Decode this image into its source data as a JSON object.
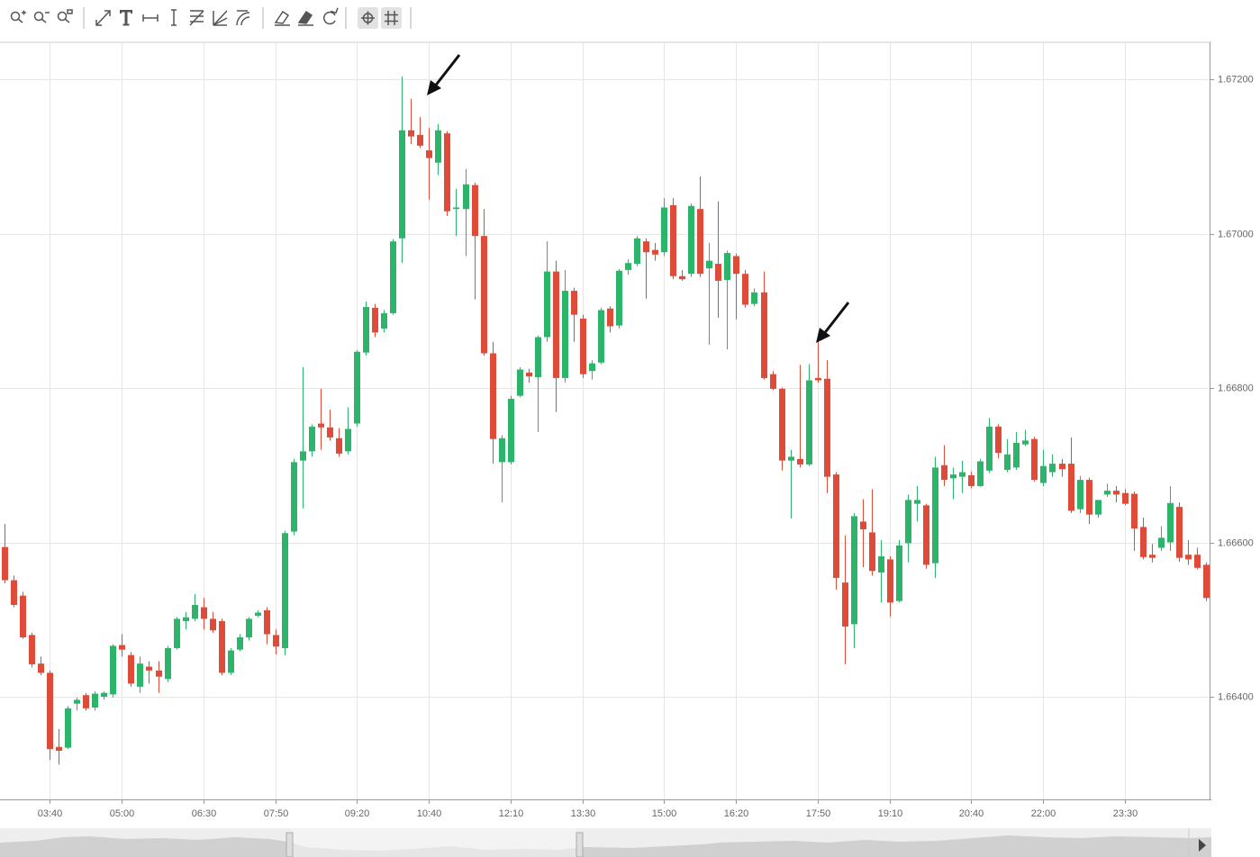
{
  "chart_data": {
    "type": "candlestick",
    "up_color": "#2db46b",
    "down_color": "#de4b39",
    "grid": true,
    "ylim": [
      1.66267,
      1.67248
    ],
    "yticks": [
      {
        "value": 1.672,
        "label": "1.67200"
      },
      {
        "value": 1.67,
        "label": "1.67000"
      },
      {
        "value": 1.668,
        "label": "1.66800"
      },
      {
        "value": 1.666,
        "label": "1.66600"
      },
      {
        "value": 1.664,
        "label": "1.66400"
      }
    ],
    "categories": [
      null,
      null,
      null,
      null,
      null,
      "03:40",
      null,
      null,
      null,
      null,
      null,
      null,
      null,
      "05:00",
      null,
      null,
      null,
      null,
      null,
      null,
      null,
      null,
      "06:30",
      null,
      null,
      null,
      null,
      null,
      null,
      null,
      "07:50",
      null,
      null,
      null,
      null,
      null,
      null,
      null,
      null,
      "09:20",
      null,
      null,
      null,
      null,
      null,
      null,
      null,
      "10:40",
      null,
      null,
      null,
      null,
      null,
      null,
      null,
      null,
      "12:10",
      null,
      null,
      null,
      null,
      null,
      null,
      null,
      "13:30",
      null,
      null,
      null,
      null,
      null,
      null,
      null,
      null,
      "15:00",
      null,
      null,
      null,
      null,
      null,
      null,
      null,
      "16:20",
      null,
      null,
      null,
      null,
      null,
      null,
      null,
      null,
      "17:50",
      null,
      null,
      null,
      null,
      null,
      null,
      null,
      "19:10",
      null,
      null,
      null,
      null,
      null,
      null,
      null,
      null,
      "20:40",
      null,
      null,
      null,
      null,
      null,
      null,
      null,
      "22:00",
      null,
      null,
      null,
      null,
      null,
      null,
      null,
      null,
      "23:30",
      null,
      null,
      null,
      null,
      null,
      null,
      null,
      null,
      null
    ],
    "open": [
      1.66594,
      1.66551,
      1.66531,
      1.6648,
      1.66443,
      1.66431,
      1.66335,
      1.66334,
      1.66391,
      1.66402,
      1.66386,
      1.664,
      1.66403,
      1.66467,
      1.66454,
      1.66413,
      1.66439,
      1.66434,
      1.66423,
      1.66463,
      1.66498,
      1.66501,
      1.66516,
      1.66501,
      1.66498,
      1.66431,
      1.66461,
      1.66477,
      1.66505,
      1.66512,
      1.6648,
      1.66463,
      1.66614,
      1.66706,
      1.66718,
      1.66754,
      1.66749,
      1.66735,
      1.66718,
      1.66754,
      1.66846,
      1.66904,
      1.66877,
      1.66897,
      1.66994,
      1.67134,
      1.67128,
      1.67108,
      1.67092,
      1.6713,
      1.67032,
      1.67032,
      1.67063,
      1.66997,
      1.66845,
      1.66704,
      1.66704,
      1.6679,
      1.6682,
      1.66814,
      1.66866,
      1.66951,
      1.66813,
      1.66926,
      1.6689,
      1.66822,
      1.66833,
      1.66903,
      1.66881,
      1.66953,
      1.66961,
      1.6699,
      1.66979,
      1.66976,
      1.67037,
      1.66945,
      1.66948,
      1.67032,
      1.66955,
      1.66961,
      1.6694,
      1.66971,
      1.66948,
      1.66909,
      1.66924,
      1.66818,
      1.66799,
      1.66706,
      1.66708,
      1.66701,
      1.66813,
      1.66812,
      1.66688,
      1.66548,
      1.66494,
      1.66627,
      1.66613,
      1.66561,
      1.66578,
      1.66524,
      1.66599,
      1.6665,
      1.66648,
      1.66573,
      1.667,
      1.66683,
      1.66685,
      1.66687,
      1.66673,
      1.66693,
      1.6675,
      1.66694,
      1.66697,
      1.66727,
      1.66734,
      1.66677,
      1.66691,
      1.66702,
      1.66702,
      1.66643,
      1.66681,
      1.66636,
      1.66662,
      1.66667,
      1.66664,
      1.66663,
      1.6662,
      1.66584,
      1.66593,
      1.666,
      1.66646,
      1.66584,
      1.66584,
      1.66571
    ],
    "high": [
      1.66624,
      1.66557,
      1.66536,
      1.66483,
      1.66452,
      1.66434,
      1.66358,
      1.66388,
      1.66399,
      1.66405,
      1.66407,
      1.66407,
      1.66468,
      1.66481,
      1.66458,
      1.66452,
      1.66446,
      1.66446,
      1.66466,
      1.66503,
      1.6651,
      1.66533,
      1.66528,
      1.6651,
      1.66501,
      1.66463,
      1.66481,
      1.66503,
      1.66512,
      1.66516,
      1.66487,
      1.66615,
      1.66708,
      1.66827,
      1.66753,
      1.66799,
      1.66772,
      1.66748,
      1.66775,
      1.66849,
      1.66912,
      1.66909,
      1.66901,
      1.66993,
      1.67204,
      1.67175,
      1.67151,
      1.67137,
      1.67142,
      1.67133,
      1.67058,
      1.67084,
      1.67066,
      1.67032,
      1.6686,
      1.66739,
      1.6679,
      1.66827,
      1.66825,
      1.66868,
      1.6699,
      1.66965,
      1.66953,
      1.6693,
      1.66895,
      1.66836,
      1.66904,
      1.66906,
      1.66954,
      1.66967,
      1.66997,
      1.66994,
      1.66988,
      1.67046,
      1.67046,
      1.66953,
      1.67039,
      1.67074,
      1.66988,
      1.67042,
      1.66978,
      1.66974,
      1.66953,
      1.66929,
      1.66951,
      1.66822,
      1.66801,
      1.6672,
      1.6683,
      1.66831,
      1.6686,
      1.66836,
      1.66691,
      1.66609,
      1.66638,
      1.66656,
      1.66669,
      1.66603,
      1.66582,
      1.66603,
      1.66662,
      1.66673,
      1.6665,
      1.66711,
      1.66726,
      1.66697,
      1.66706,
      1.66692,
      1.66708,
      1.66761,
      1.66753,
      1.66734,
      1.66743,
      1.66746,
      1.66737,
      1.6672,
      1.66714,
      1.66708,
      1.66736,
      1.66686,
      1.66684,
      1.6665,
      1.66676,
      1.66673,
      1.66669,
      1.66666,
      1.66632,
      1.66598,
      1.66621,
      1.66673,
      1.66652,
      1.66603,
      1.66593,
      1.66574
    ],
    "low": [
      1.66547,
      1.66516,
      1.66475,
      1.66438,
      1.66428,
      1.66318,
      1.66312,
      1.66332,
      1.66382,
      1.66382,
      1.66382,
      1.66396,
      1.66399,
      1.66452,
      1.66413,
      1.66405,
      1.66417,
      1.66405,
      1.66419,
      1.66461,
      1.66487,
      1.66498,
      1.66487,
      1.66483,
      1.66428,
      1.66428,
      1.66459,
      1.66473,
      1.66503,
      1.66468,
      1.66455,
      1.66454,
      1.66609,
      1.66644,
      1.66711,
      1.6672,
      1.66732,
      1.66711,
      1.66714,
      1.6675,
      1.66842,
      1.66866,
      1.66872,
      1.66895,
      1.66962,
      1.67116,
      1.67111,
      1.67044,
      1.67076,
      1.67023,
      1.66997,
      1.66971,
      1.66915,
      1.66842,
      1.66702,
      1.66652,
      1.66701,
      1.66788,
      1.66807,
      1.66743,
      1.6686,
      1.66769,
      1.66807,
      1.6686,
      1.66813,
      1.66811,
      1.66831,
      1.66872,
      1.66877,
      1.66947,
      1.66958,
      1.66916,
      1.66965,
      1.66971,
      1.66941,
      1.66939,
      1.66944,
      1.66944,
      1.66856,
      1.66891,
      1.6685,
      1.66889,
      1.66904,
      1.66906,
      1.66811,
      1.66797,
      1.66693,
      1.66631,
      1.66697,
      1.66699,
      1.66807,
      1.66664,
      1.66539,
      1.66442,
      1.66463,
      1.66568,
      1.66557,
      1.66522,
      1.66504,
      1.66522,
      1.66574,
      1.66627,
      1.66566,
      1.66554,
      1.66673,
      1.66656,
      1.66664,
      1.6667,
      1.66672,
      1.6669,
      1.66709,
      1.66691,
      1.66694,
      1.66725,
      1.66679,
      1.66673,
      1.66685,
      1.66685,
      1.66638,
      1.66638,
      1.66624,
      1.66632,
      1.66659,
      1.66652,
      1.66648,
      1.66589,
      1.66578,
      1.66574,
      1.66589,
      1.66589,
      1.66575,
      1.66571,
      1.66565,
      1.66524
    ],
    "close": [
      1.66551,
      1.66519,
      1.66477,
      1.66442,
      1.66431,
      1.66332,
      1.6633,
      1.66385,
      1.66396,
      1.66385,
      1.66404,
      1.66405,
      1.66466,
      1.66461,
      1.66417,
      1.66443,
      1.66434,
      1.66426,
      1.66463,
      1.66501,
      1.66503,
      1.66519,
      1.66501,
      1.66486,
      1.66431,
      1.6646,
      1.66477,
      1.66501,
      1.66509,
      1.66481,
      1.66465,
      1.66612,
      1.66704,
      1.66718,
      1.6675,
      1.66749,
      1.66736,
      1.66715,
      1.66747,
      1.66847,
      1.66905,
      1.66872,
      1.66897,
      1.6699,
      1.67134,
      1.67126,
      1.67114,
      1.67098,
      1.67134,
      1.67029,
      1.67034,
      1.67064,
      1.66997,
      1.66845,
      1.66734,
      1.66735,
      1.66786,
      1.66824,
      1.66815,
      1.66866,
      1.66951,
      1.66813,
      1.66926,
      1.66895,
      1.66818,
      1.66832,
      1.66901,
      1.6688,
      1.66952,
      1.66962,
      1.66994,
      1.66976,
      1.66973,
      1.67034,
      1.66945,
      1.66941,
      1.67036,
      1.66948,
      1.66965,
      1.66939,
      1.66975,
      1.66948,
      1.66908,
      1.66924,
      1.66813,
      1.66799,
      1.66706,
      1.66711,
      1.66701,
      1.6681,
      1.6681,
      1.66685,
      1.66554,
      1.66491,
      1.66634,
      1.66617,
      1.66563,
      1.66582,
      1.66522,
      1.66596,
      1.66655,
      1.66655,
      1.66571,
      1.66697,
      1.66681,
      1.66688,
      1.66691,
      1.66673,
      1.66705,
      1.6675,
      1.66716,
      1.66714,
      1.66729,
      1.66732,
      1.66681,
      1.66699,
      1.66702,
      1.66695,
      1.66641,
      1.66681,
      1.66636,
      1.66655,
      1.66667,
      1.66662,
      1.6665,
      1.66618,
      1.66581,
      1.6658,
      1.66606,
      1.66651,
      1.6658,
      1.66578,
      1.66567,
      1.66528
    ]
  }
}
